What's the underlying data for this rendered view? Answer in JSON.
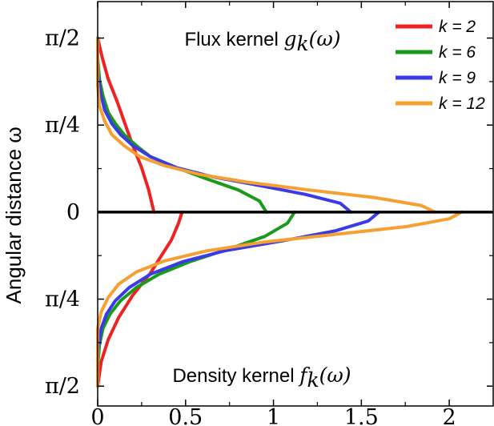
{
  "chart_data": {
    "type": "line",
    "xlim": [
      0,
      2.25
    ],
    "x_ticks": [
      {
        "value": 0,
        "label": "0"
      },
      {
        "value": 0.5,
        "label": "0.5"
      },
      {
        "value": 1,
        "label": "1"
      },
      {
        "value": 1.5,
        "label": "1.5"
      },
      {
        "value": 2,
        "label": "2"
      }
    ],
    "ylabel": "Angular distance ω",
    "y_ticks": [
      {
        "value": 1.5708,
        "label": "π/2"
      },
      {
        "value": 0.7854,
        "label": "π/4"
      },
      {
        "value": 0,
        "label": "0"
      },
      {
        "value": -0.7854,
        "label": "π/4"
      },
      {
        "value": -1.5708,
        "label": "π/2"
      }
    ],
    "ylim": [
      -1.75,
      1.9
    ],
    "panels": {
      "top": {
        "title_text": "Flux kernel ",
        "title_math": "g",
        "title_sub": "k",
        "title_arg": "(ω)"
      },
      "bottom": {
        "title_text": "Density kernel ",
        "title_math": "f",
        "title_sub": "k",
        "title_arg": "(ω)"
      }
    },
    "legend": {
      "position": "top-right"
    },
    "series": [
      {
        "name": "k = 2",
        "color": "#ee2222",
        "flux": [
          [
            0.32,
            0
          ],
          [
            0.29,
            0.2
          ],
          [
            0.25,
            0.4
          ],
          [
            0.2,
            0.6
          ],
          [
            0.155,
            0.8
          ],
          [
            0.11,
            1.0
          ],
          [
            0.06,
            1.2
          ],
          [
            0.025,
            1.4
          ],
          [
            0,
            1.57
          ]
        ],
        "density": [
          [
            0.48,
            0
          ],
          [
            0.46,
            -0.1
          ],
          [
            0.42,
            -0.25
          ],
          [
            0.36,
            -0.4
          ],
          [
            0.3,
            -0.55
          ],
          [
            0.2,
            -0.75
          ],
          [
            0.12,
            -0.95
          ],
          [
            0.06,
            -1.15
          ],
          [
            0.02,
            -1.35
          ],
          [
            0,
            -1.57
          ]
        ]
      },
      {
        "name": "k = 6",
        "color": "#1a9a1a",
        "flux": [
          [
            0.96,
            0
          ],
          [
            0.92,
            0.1
          ],
          [
            0.8,
            0.2
          ],
          [
            0.62,
            0.3
          ],
          [
            0.45,
            0.4
          ],
          [
            0.3,
            0.5
          ],
          [
            0.22,
            0.6
          ],
          [
            0.15,
            0.7
          ],
          [
            0.1,
            0.8
          ],
          [
            0.06,
            0.9
          ],
          [
            0.03,
            1.05
          ],
          [
            0.01,
            1.2
          ],
          [
            0,
            1.4
          ],
          [
            0,
            1.57
          ]
        ],
        "density": [
          [
            1.12,
            0
          ],
          [
            1.08,
            -0.1
          ],
          [
            0.95,
            -0.22
          ],
          [
            0.75,
            -0.33
          ],
          [
            0.52,
            -0.45
          ],
          [
            0.35,
            -0.56
          ],
          [
            0.22,
            -0.68
          ],
          [
            0.13,
            -0.8
          ],
          [
            0.07,
            -0.92
          ],
          [
            0.03,
            -1.05
          ],
          [
            0.01,
            -1.2
          ],
          [
            0,
            -1.4
          ],
          [
            0,
            -1.57
          ]
        ]
      },
      {
        "name": "k = 9",
        "color": "#3a3ae8",
        "flux": [
          [
            1.44,
            0
          ],
          [
            1.38,
            0.08
          ],
          [
            1.18,
            0.16
          ],
          [
            0.92,
            0.24
          ],
          [
            0.65,
            0.32
          ],
          [
            0.45,
            0.4
          ],
          [
            0.3,
            0.5
          ],
          [
            0.2,
            0.6
          ],
          [
            0.13,
            0.7
          ],
          [
            0.08,
            0.8
          ],
          [
            0.04,
            0.92
          ],
          [
            0.02,
            1.05
          ],
          [
            0,
            1.25
          ],
          [
            0,
            1.57
          ]
        ],
        "density": [
          [
            1.6,
            0
          ],
          [
            1.54,
            -0.08
          ],
          [
            1.35,
            -0.17
          ],
          [
            1.05,
            -0.26
          ],
          [
            0.72,
            -0.35
          ],
          [
            0.48,
            -0.45
          ],
          [
            0.3,
            -0.56
          ],
          [
            0.18,
            -0.68
          ],
          [
            0.1,
            -0.8
          ],
          [
            0.05,
            -0.92
          ],
          [
            0.02,
            -1.05
          ],
          [
            0,
            -1.25
          ],
          [
            0,
            -1.57
          ]
        ]
      },
      {
        "name": "k = 12",
        "color": "#f5a030",
        "flux": [
          [
            1.92,
            0
          ],
          [
            1.84,
            0.06
          ],
          [
            1.58,
            0.13
          ],
          [
            1.2,
            0.2
          ],
          [
            0.85,
            0.27
          ],
          [
            0.58,
            0.34
          ],
          [
            0.38,
            0.42
          ],
          [
            0.24,
            0.5
          ],
          [
            0.15,
            0.6
          ],
          [
            0.08,
            0.7
          ],
          [
            0.04,
            0.82
          ],
          [
            0.01,
            0.96
          ],
          [
            0,
            1.15
          ],
          [
            0,
            1.57
          ]
        ],
        "density": [
          [
            2.07,
            0
          ],
          [
            2.0,
            -0.06
          ],
          [
            1.76,
            -0.13
          ],
          [
            1.36,
            -0.2
          ],
          [
            0.95,
            -0.27
          ],
          [
            0.62,
            -0.35
          ],
          [
            0.38,
            -0.44
          ],
          [
            0.22,
            -0.54
          ],
          [
            0.12,
            -0.65
          ],
          [
            0.06,
            -0.77
          ],
          [
            0.02,
            -0.9
          ],
          [
            0,
            -1.05
          ],
          [
            0,
            -1.25
          ],
          [
            0,
            -1.57
          ]
        ]
      }
    ]
  }
}
